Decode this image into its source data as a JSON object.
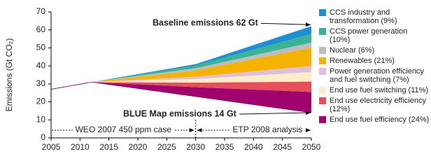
{
  "chart_data": {
    "type": "area",
    "y_label": "Emissions (Gt CO₂)",
    "x": [
      2005,
      2012,
      2030,
      2050
    ],
    "xlim": [
      2005,
      2050
    ],
    "xticks": [
      2005,
      2010,
      2015,
      2020,
      2025,
      2030,
      2035,
      2040,
      2045,
      2050
    ],
    "ylim": [
      0,
      70
    ],
    "yticks": [
      0,
      10,
      20,
      30,
      40,
      50,
      60,
      70
    ],
    "stacked": true,
    "base": {
      "label": "BLUE Map emissions 14 Gt",
      "values": [
        27,
        31,
        23,
        14
      ]
    },
    "series": [
      {
        "name": "CCS industry and transformation (9%)",
        "color": "#1e8fd5",
        "values": [
          0,
          0,
          0.8,
          4.3
        ]
      },
      {
        "name": "CCS power generation (10%)",
        "color": "#3bb394",
        "values": [
          0,
          0,
          1.5,
          4.8
        ]
      },
      {
        "name": "Nuclear (6%)",
        "color": "#bdbdbd",
        "values": [
          0,
          0,
          1.2,
          2.9
        ]
      },
      {
        "name": "Renewables (21%)",
        "color": "#f5b300",
        "values": [
          0,
          0,
          3.5,
          10.1
        ]
      },
      {
        "name": "Power generation efficiency and fuel switching (7%)",
        "color": "#dcbedd",
        "values": [
          0,
          0,
          1.3,
          3.4
        ]
      },
      {
        "name": "End use fuel switching (11%)",
        "color": "#fcecc8",
        "values": [
          0,
          0,
          2,
          5.3
        ]
      },
      {
        "name": "End use electricity efficiency (12%)",
        "color": "#e6505c",
        "values": [
          0,
          0,
          2.5,
          5.8
        ]
      },
      {
        "name": "End use fuel efficiency (24%)",
        "color": "#a0036e",
        "values": [
          0,
          0,
          5.2,
          11.5
        ]
      }
    ],
    "annotations": [
      "Baseline emissions 62 Gt",
      "WEO 2007 450 ppm case",
      "ETP 2008 analysis"
    ]
  }
}
